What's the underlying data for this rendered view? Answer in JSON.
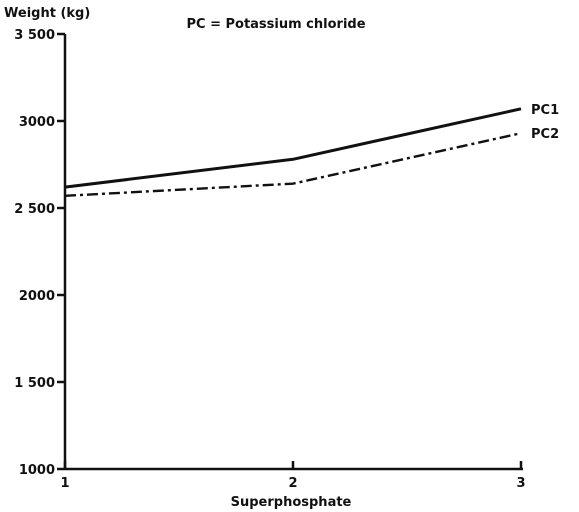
{
  "chart_data": {
    "type": "line",
    "title": "PC = Potassium chloride",
    "ylabel": "Weight (kg)",
    "xlabel": "Superphosphate",
    "x": [
      1,
      2,
      3
    ],
    "x_tick_labels": [
      "1",
      "2",
      "3"
    ],
    "y_tick_values": [
      1000,
      1500,
      2000,
      2500,
      3000,
      3500
    ],
    "y_tick_labels": [
      "1000",
      "1 500",
      "2000",
      "2 500",
      "3000",
      "3 500"
    ],
    "ylim": [
      1000,
      3500
    ],
    "xlim": [
      1,
      3
    ],
    "grid": false,
    "series": [
      {
        "name": "PC1",
        "line_style": "solid",
        "color": "#111111",
        "values": [
          2620,
          2780,
          3070
        ]
      },
      {
        "name": "PC2",
        "line_style": "dash-dot",
        "color": "#111111",
        "values": [
          2570,
          2640,
          2930
        ]
      }
    ]
  }
}
